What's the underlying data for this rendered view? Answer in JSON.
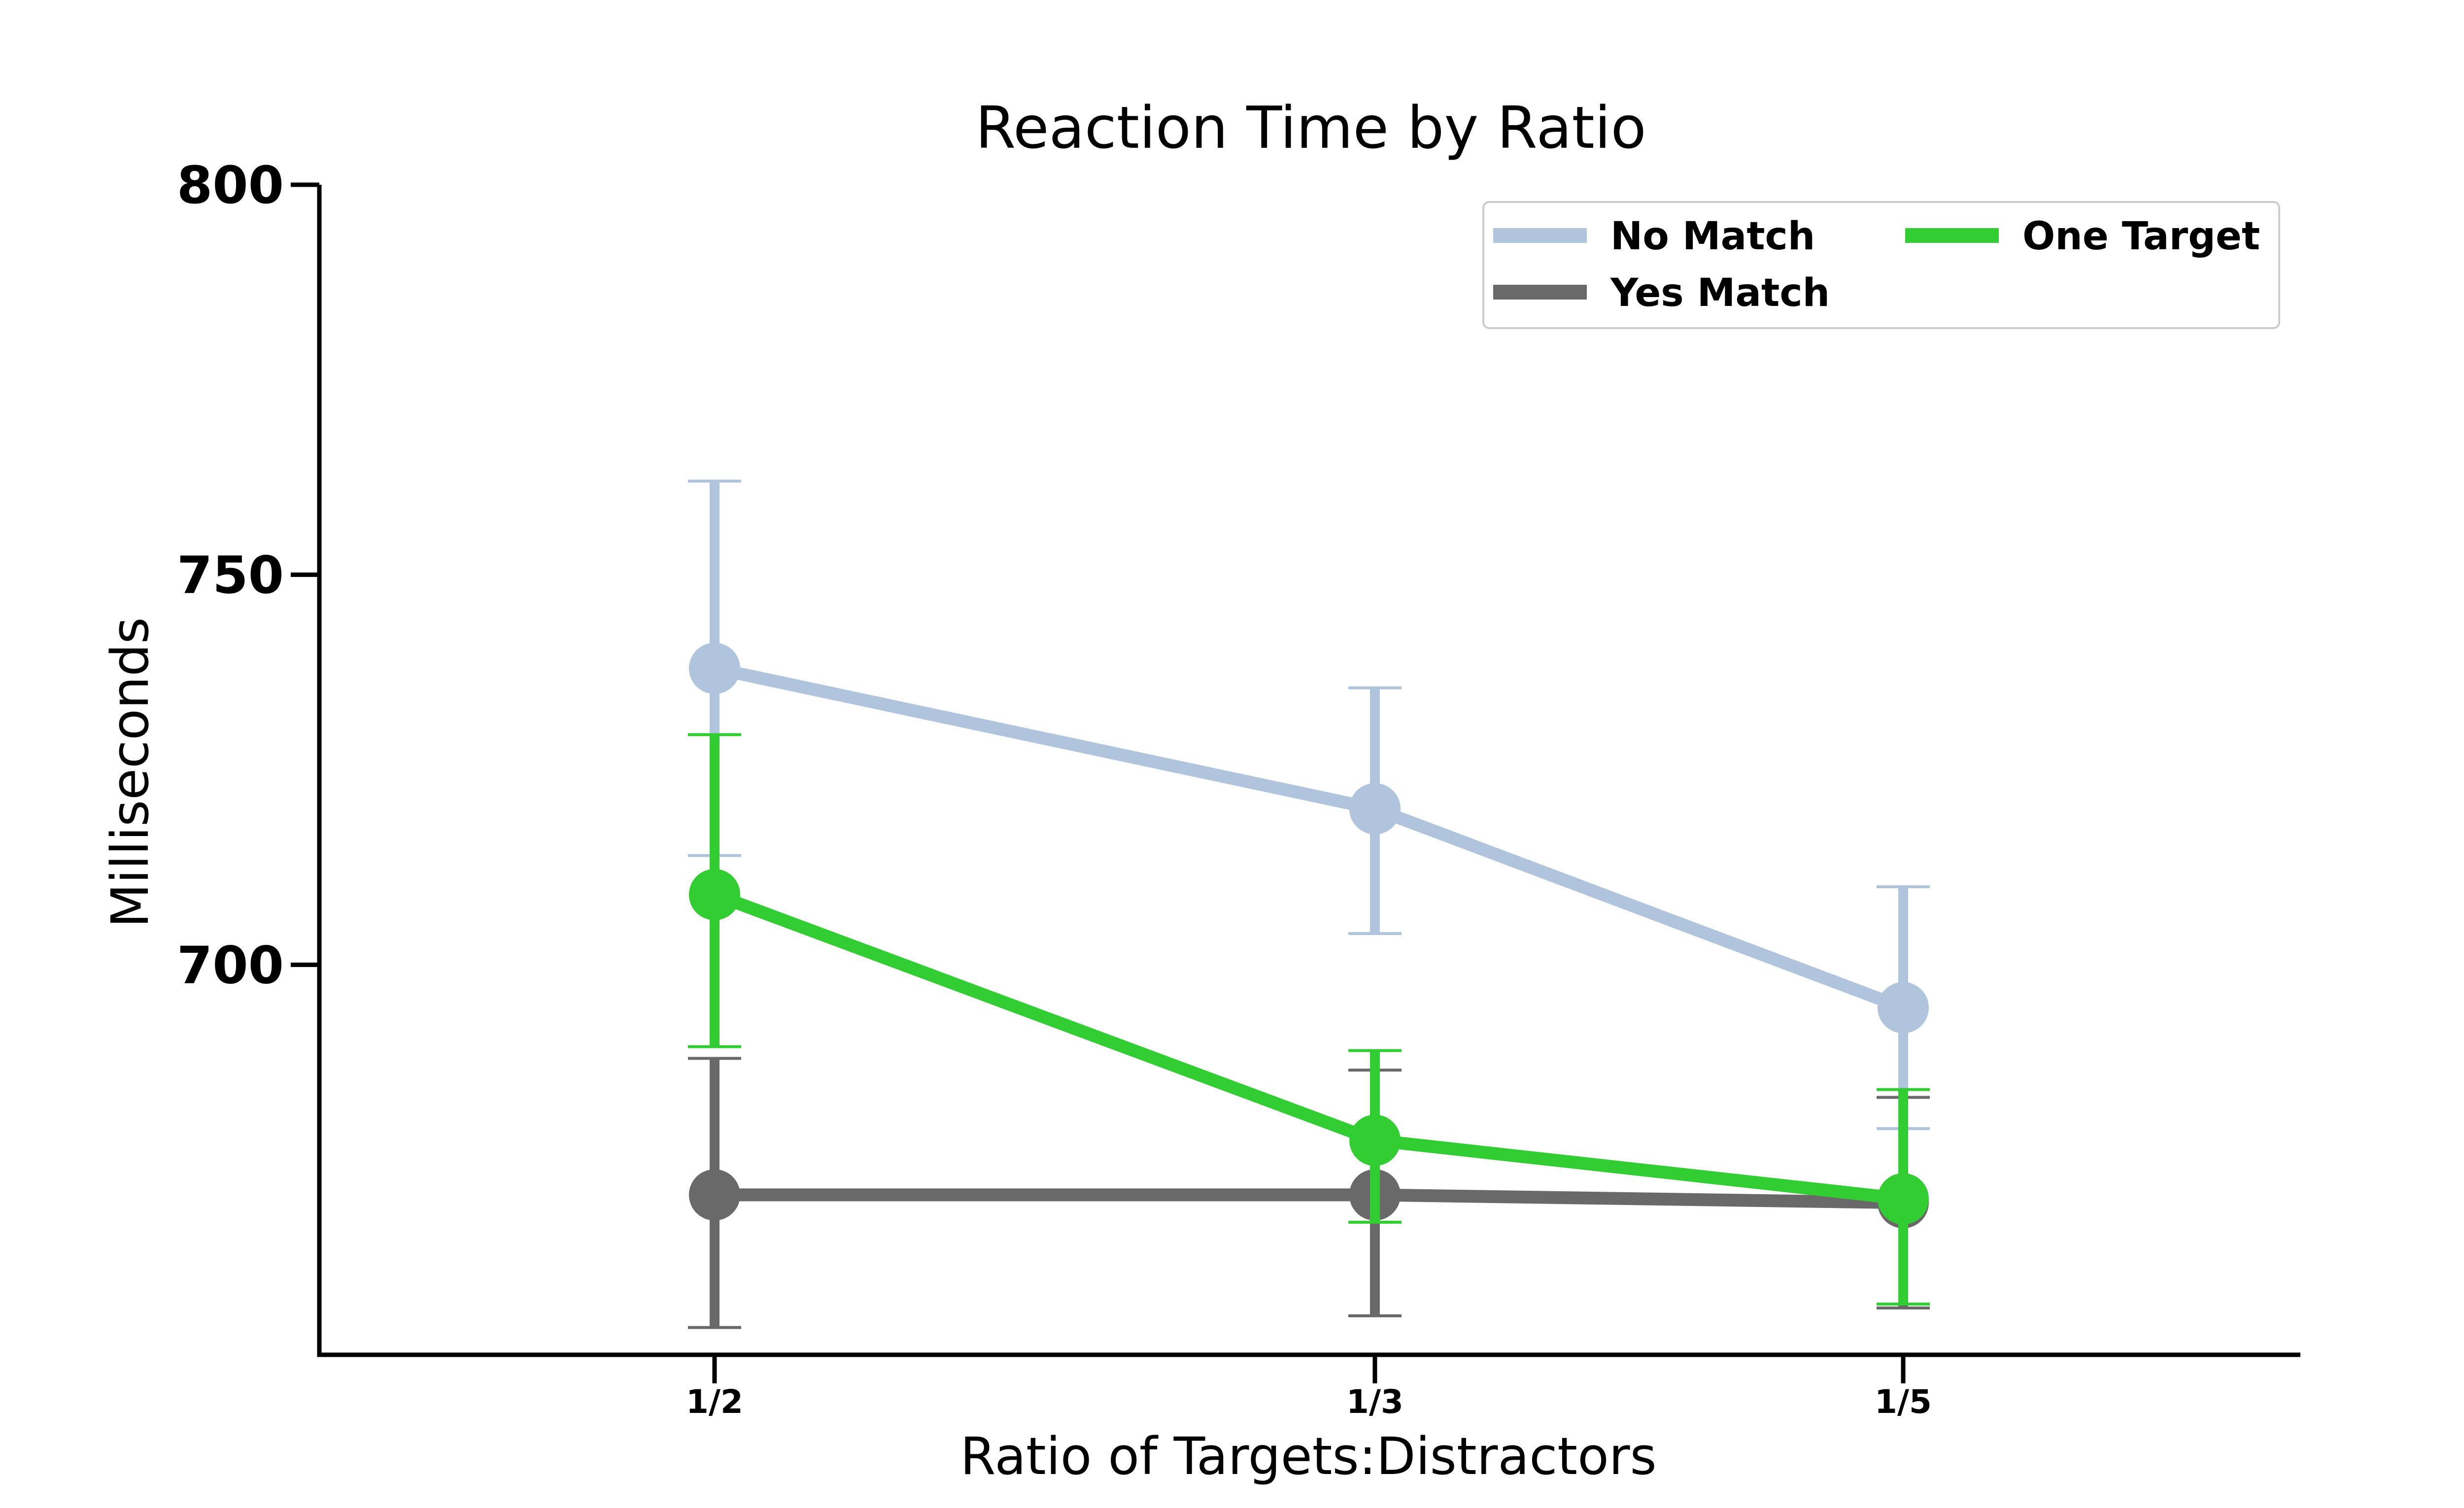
{
  "chart_data": {
    "type": "line",
    "title": "Reaction Time by Ratio",
    "xlabel": "Ratio of Targets:Distractors",
    "ylabel": "Milliseconds",
    "categories": [
      "1/2",
      "1/3",
      "1/5"
    ],
    "ylim": [
      650,
      800
    ],
    "yticks": [
      700,
      750,
      800
    ],
    "grid": false,
    "legend_position": "top-right",
    "series": [
      {
        "name": "No Match",
        "color": "#b0c4de",
        "values": [
          738,
          720,
          694.5
        ],
        "error_low": [
          714,
          704,
          679
        ],
        "error_high": [
          762,
          735.5,
          710
        ]
      },
      {
        "name": "Yes Match",
        "color": "#696969",
        "values": [
          670.5,
          670.5,
          669.5
        ],
        "error_low": [
          653.5,
          655,
          656
        ],
        "error_high": [
          688,
          686.5,
          683
        ]
      },
      {
        "name": "One Target",
        "color": "#32cd32",
        "values": [
          709,
          677.5,
          670
        ],
        "error_low": [
          689.5,
          667,
          656.5
        ],
        "error_high": [
          729.5,
          689,
          684
        ]
      }
    ]
  }
}
